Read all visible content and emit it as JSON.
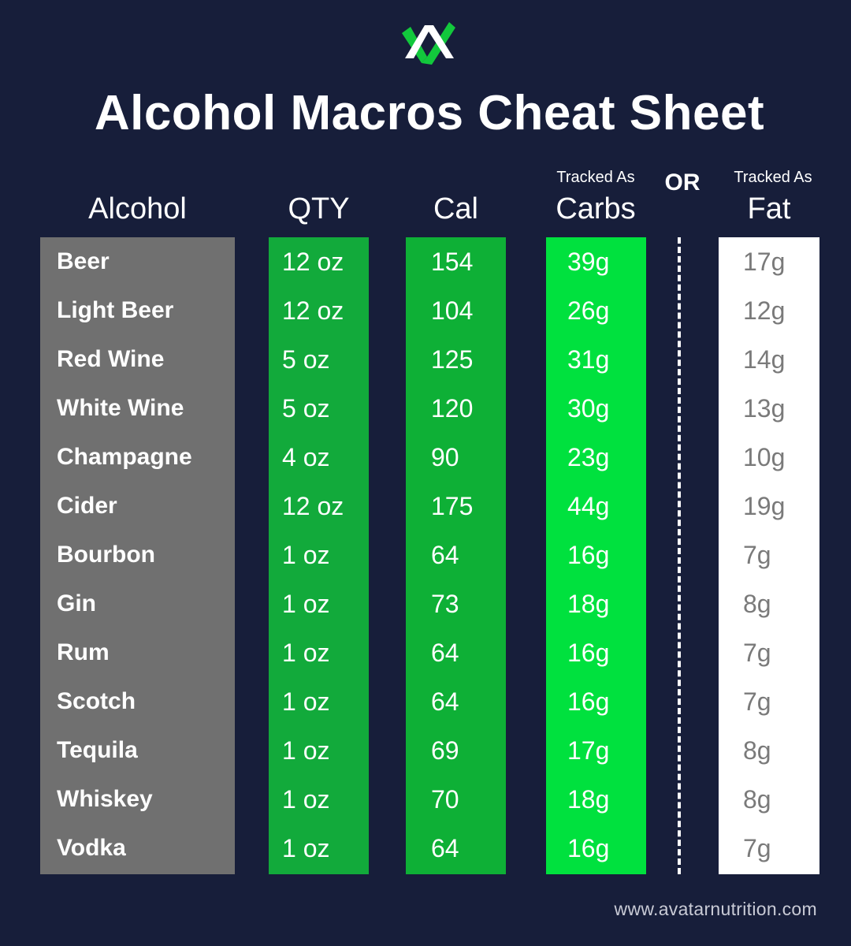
{
  "header": {
    "title": "Alcohol Macros Cheat Sheet",
    "logo_icon": "avatar-logo-icon",
    "colors": {
      "background": "#171e3a",
      "logo_green": "#12c83c",
      "logo_white": "#ffffff"
    }
  },
  "columns": {
    "alcohol": "Alcohol",
    "qty": "QTY",
    "cal": "Cal",
    "carbs_prefix": "Tracked As",
    "carbs": "Carbs",
    "or": "OR",
    "fat_prefix": "Tracked As",
    "fat": "Fat"
  },
  "column_colors": {
    "alcohol": "#707070",
    "qty": "#12aa3b",
    "cal": "#0eb036",
    "carbs": "#00e13e",
    "fat": "#ffffff"
  },
  "rows": [
    {
      "name": "Beer",
      "qty": "12 oz",
      "cal": "154",
      "carbs": "39g",
      "fat": "17g"
    },
    {
      "name": "Light Beer",
      "qty": "12 oz",
      "cal": "104",
      "carbs": "26g",
      "fat": "12g"
    },
    {
      "name": "Red Wine",
      "qty": "5 oz",
      "cal": "125",
      "carbs": "31g",
      "fat": "14g"
    },
    {
      "name": "White Wine",
      "qty": "5 oz",
      "cal": "120",
      "carbs": "30g",
      "fat": "13g"
    },
    {
      "name": "Champagne",
      "qty": "4 oz",
      "cal": "90",
      "carbs": "23g",
      "fat": "10g"
    },
    {
      "name": "Cider",
      "qty": "12 oz",
      "cal": "175",
      "carbs": "44g",
      "fat": "19g"
    },
    {
      "name": "Bourbon",
      "qty": "1 oz",
      "cal": "64",
      "carbs": "16g",
      "fat": "7g"
    },
    {
      "name": "Gin",
      "qty": "1 oz",
      "cal": "73",
      "carbs": "18g",
      "fat": "8g"
    },
    {
      "name": "Rum",
      "qty": "1 oz",
      "cal": "64",
      "carbs": "16g",
      "fat": "7g"
    },
    {
      "name": "Scotch",
      "qty": "1 oz",
      "cal": "64",
      "carbs": "16g",
      "fat": "7g"
    },
    {
      "name": "Tequila",
      "qty": "1 oz",
      "cal": "69",
      "carbs": "17g",
      "fat": "8g"
    },
    {
      "name": "Whiskey",
      "qty": "1 oz",
      "cal": "70",
      "carbs": "18g",
      "fat": "8g"
    },
    {
      "name": "Vodka",
      "qty": "1 oz",
      "cal": "64",
      "carbs": "16g",
      "fat": "7g"
    }
  ],
  "footer": {
    "website": "www.avatarnutrition.com"
  }
}
